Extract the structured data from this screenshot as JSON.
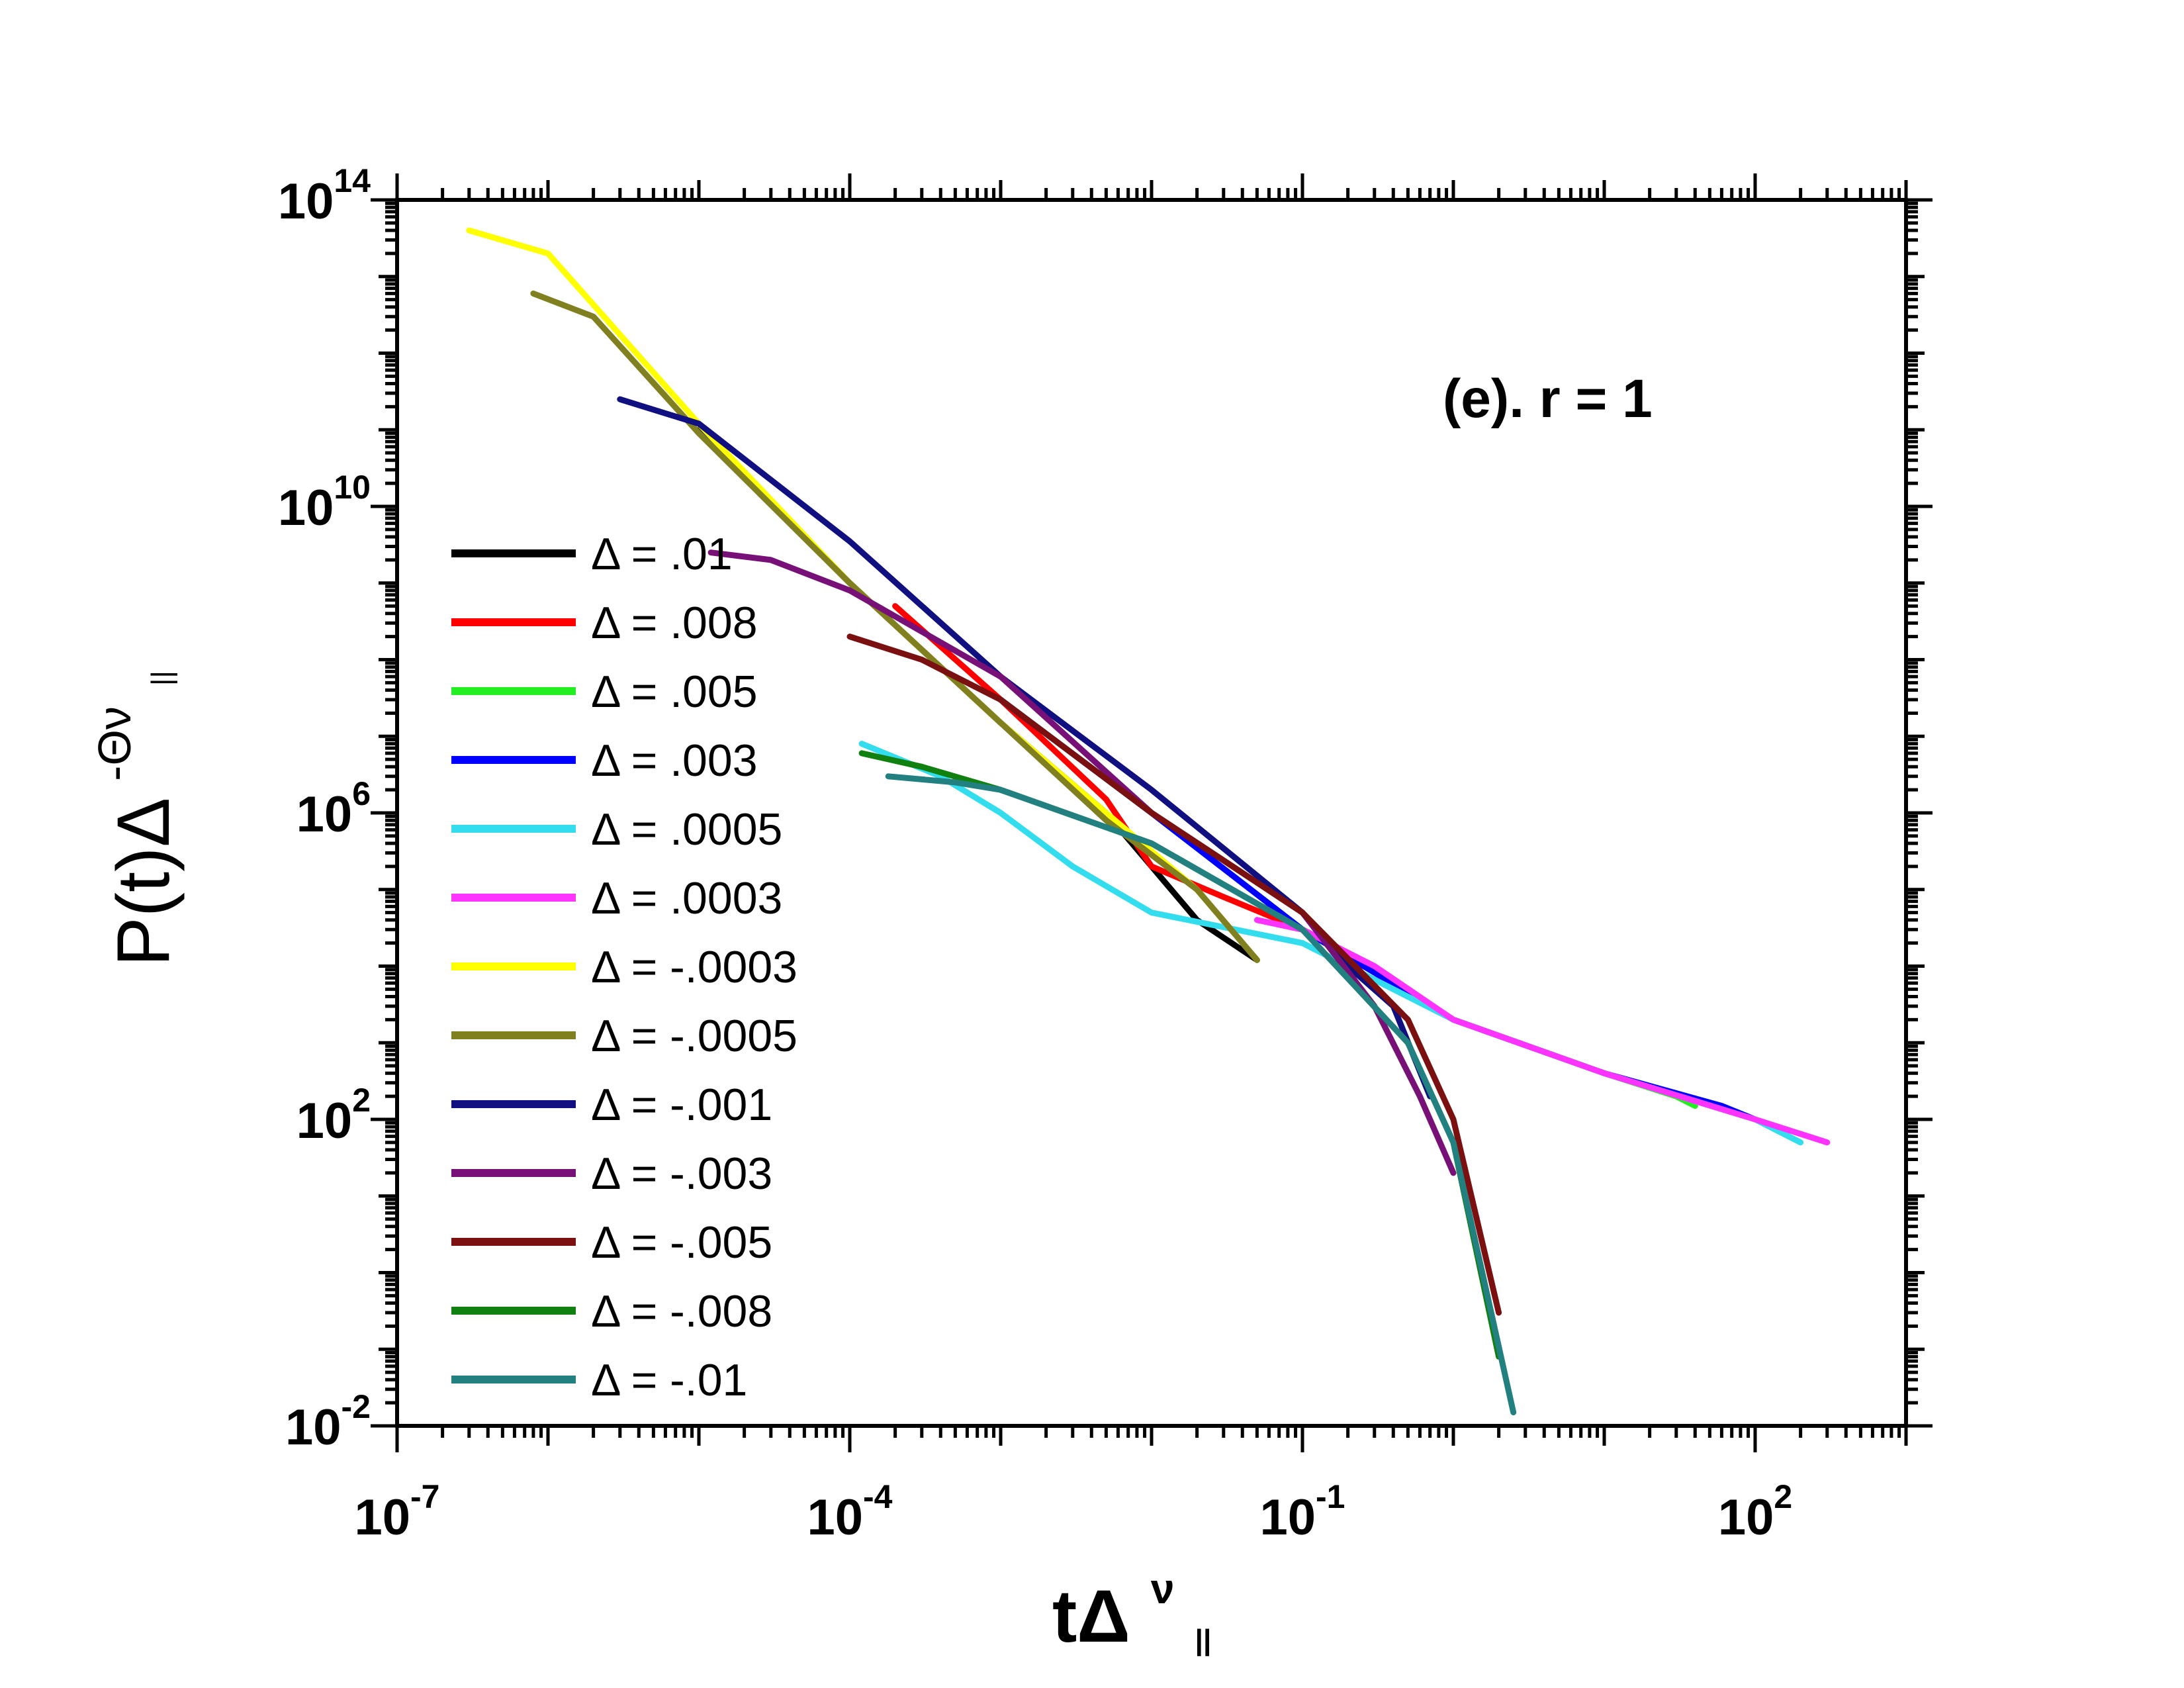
{
  "chart_data": {
    "type": "line",
    "scale": {
      "x": "log",
      "y": "log"
    },
    "title": "",
    "annotation": "(e). r = 1",
    "xlabel": {
      "base": "tΔ",
      "superscript": "ν",
      "subscript": "||"
    },
    "ylabel": {
      "base": "P(t)Δ",
      "superscript": "-Θν",
      "subscript": "||"
    },
    "xlim": [
      1e-07,
      1000
    ],
    "ylim": [
      0.01,
      100000000000000.0
    ],
    "x_ticks": [
      {
        "label": "10",
        "exp": "-7"
      },
      {
        "label": "10",
        "exp": "-4"
      },
      {
        "label": "10",
        "exp": "-1"
      },
      {
        "label": "10",
        "exp": "2"
      }
    ],
    "y_ticks": [
      {
        "label": "10",
        "exp": "-2"
      },
      {
        "label": "10",
        "exp": "2"
      },
      {
        "label": "10",
        "exp": "6"
      },
      {
        "label": "10",
        "exp": "10"
      },
      {
        "label": "10",
        "exp": "14"
      }
    ],
    "legend_position": "left",
    "series": [
      {
        "name": "Δ = .01",
        "color": "#000000",
        "x": [
          1e-05,
          0.0001,
          0.001,
          0.005,
          0.01,
          0.02,
          0.05
        ],
        "y": [
          100000000000.0,
          1000000000.0,
          15000000.0,
          1000000.0,
          200000.0,
          40000.0,
          12000.0
        ]
      },
      {
        "name": "Δ = .008",
        "color": "#ff0000",
        "x": [
          0.0002,
          0.001,
          0.005,
          0.01,
          0.03,
          0.1,
          0.15,
          0.2,
          0.3
        ],
        "y": [
          500000000.0,
          30000000.0,
          1500000.0,
          200000.0,
          80000.0,
          30000.0,
          20000.0,
          10000.0,
          6000.0
        ]
      },
      {
        "name": "Δ = .005",
        "color": "#22ee22",
        "x": [
          0.001,
          0.01,
          0.1,
          1,
          10,
          30,
          40
        ],
        "y": [
          30000000.0,
          1000000.0,
          30000.0,
          2000.0,
          400.0,
          200.0,
          150.0
        ]
      },
      {
        "name": "Δ = .003",
        "color": "#0000ff",
        "x": [
          0.001,
          0.01,
          0.1,
          1,
          10,
          60,
          100
        ],
        "y": [
          30000000.0,
          1000000.0,
          30000.0,
          2000.0,
          400.0,
          150.0,
          100.0
        ]
      },
      {
        "name": "Δ = .0005",
        "color": "#33ddee",
        "x": [
          0.00012,
          0.0004,
          0.001,
          0.003,
          0.01,
          0.1,
          1,
          10,
          100,
          200
        ],
        "y": [
          8000000.0,
          3000000.0,
          1000000.0,
          200000.0,
          50000.0,
          20000.0,
          2000.0,
          400.0,
          100.0,
          50.0
        ]
      },
      {
        "name": "Δ = .0003",
        "color": "#ff33ff",
        "x": [
          0.05,
          0.1,
          0.3,
          1,
          10,
          100,
          300
        ],
        "y": [
          40000.0,
          30000.0,
          10000.0,
          2000.0,
          400.0,
          100.0,
          50.0
        ]
      },
      {
        "name": "Δ = -.0003",
        "color": "#ffff00",
        "x": [
          3e-07,
          1e-06,
          1e-05,
          0.0001,
          0.001,
          0.005,
          0.02,
          0.05
        ],
        "y": [
          40000000000000.0,
          20000000000000.0,
          120000000000.0,
          1000000000.0,
          15000000.0,
          1000000.0,
          100000.0,
          12000.0
        ]
      },
      {
        "name": "Δ = -.0005",
        "color": "#808020",
        "x": [
          8e-07,
          2e-06,
          1e-05,
          0.0001,
          0.001,
          0.005,
          0.02,
          0.05
        ],
        "y": [
          6000000000000.0,
          3000000000000.0,
          90000000000.0,
          1000000000.0,
          15000000.0,
          800000.0,
          100000.0,
          12000.0
        ]
      },
      {
        "name": "Δ = -.001",
        "color": "#101080",
        "x": [
          3e-06,
          1e-05,
          0.0001,
          0.001,
          0.01,
          0.1,
          0.2,
          0.4,
          0.7
        ],
        "y": [
          250000000000.0,
          120000000000.0,
          3500000000.0,
          60000000.0,
          2000000.0,
          50000.0,
          10000.0,
          3000.0,
          200.0
        ]
      },
      {
        "name": "Δ = -.003",
        "color": "#771177",
        "x": [
          1.2e-05,
          3e-05,
          0.0001,
          0.001,
          0.01,
          0.1,
          0.3,
          0.6,
          1
        ],
        "y": [
          2500000000.0,
          2000000000.0,
          800000000.0,
          60000000.0,
          1000000.0,
          50000.0,
          3000.0,
          200.0,
          20.0
        ]
      },
      {
        "name": "Δ = -.005",
        "color": "#7a1010",
        "x": [
          0.0001,
          0.0003,
          0.001,
          0.01,
          0.1,
          0.5,
          1,
          2
        ],
        "y": [
          200000000.0,
          100000000.0,
          30000000.0,
          1000000.0,
          50000.0,
          2000.0,
          100.0,
          0.3
        ]
      },
      {
        "name": "Δ = -.008",
        "color": "#108010",
        "x": [
          0.00012,
          0.0003,
          0.001,
          0.01,
          0.1,
          0.5,
          1,
          2
        ],
        "y": [
          6000000.0,
          4000000.0,
          2000000.0,
          400000.0,
          30000.0,
          1000.0,
          50.0,
          0.08
        ]
      },
      {
        "name": "Δ = -.01",
        "color": "#228080",
        "x": [
          0.00018,
          0.0005,
          0.001,
          0.01,
          0.1,
          0.5,
          1,
          2.5
        ],
        "y": [
          3000000.0,
          2500000.0,
          2000000.0,
          400000.0,
          30000.0,
          1000.0,
          50.0,
          0.015
        ]
      }
    ]
  }
}
